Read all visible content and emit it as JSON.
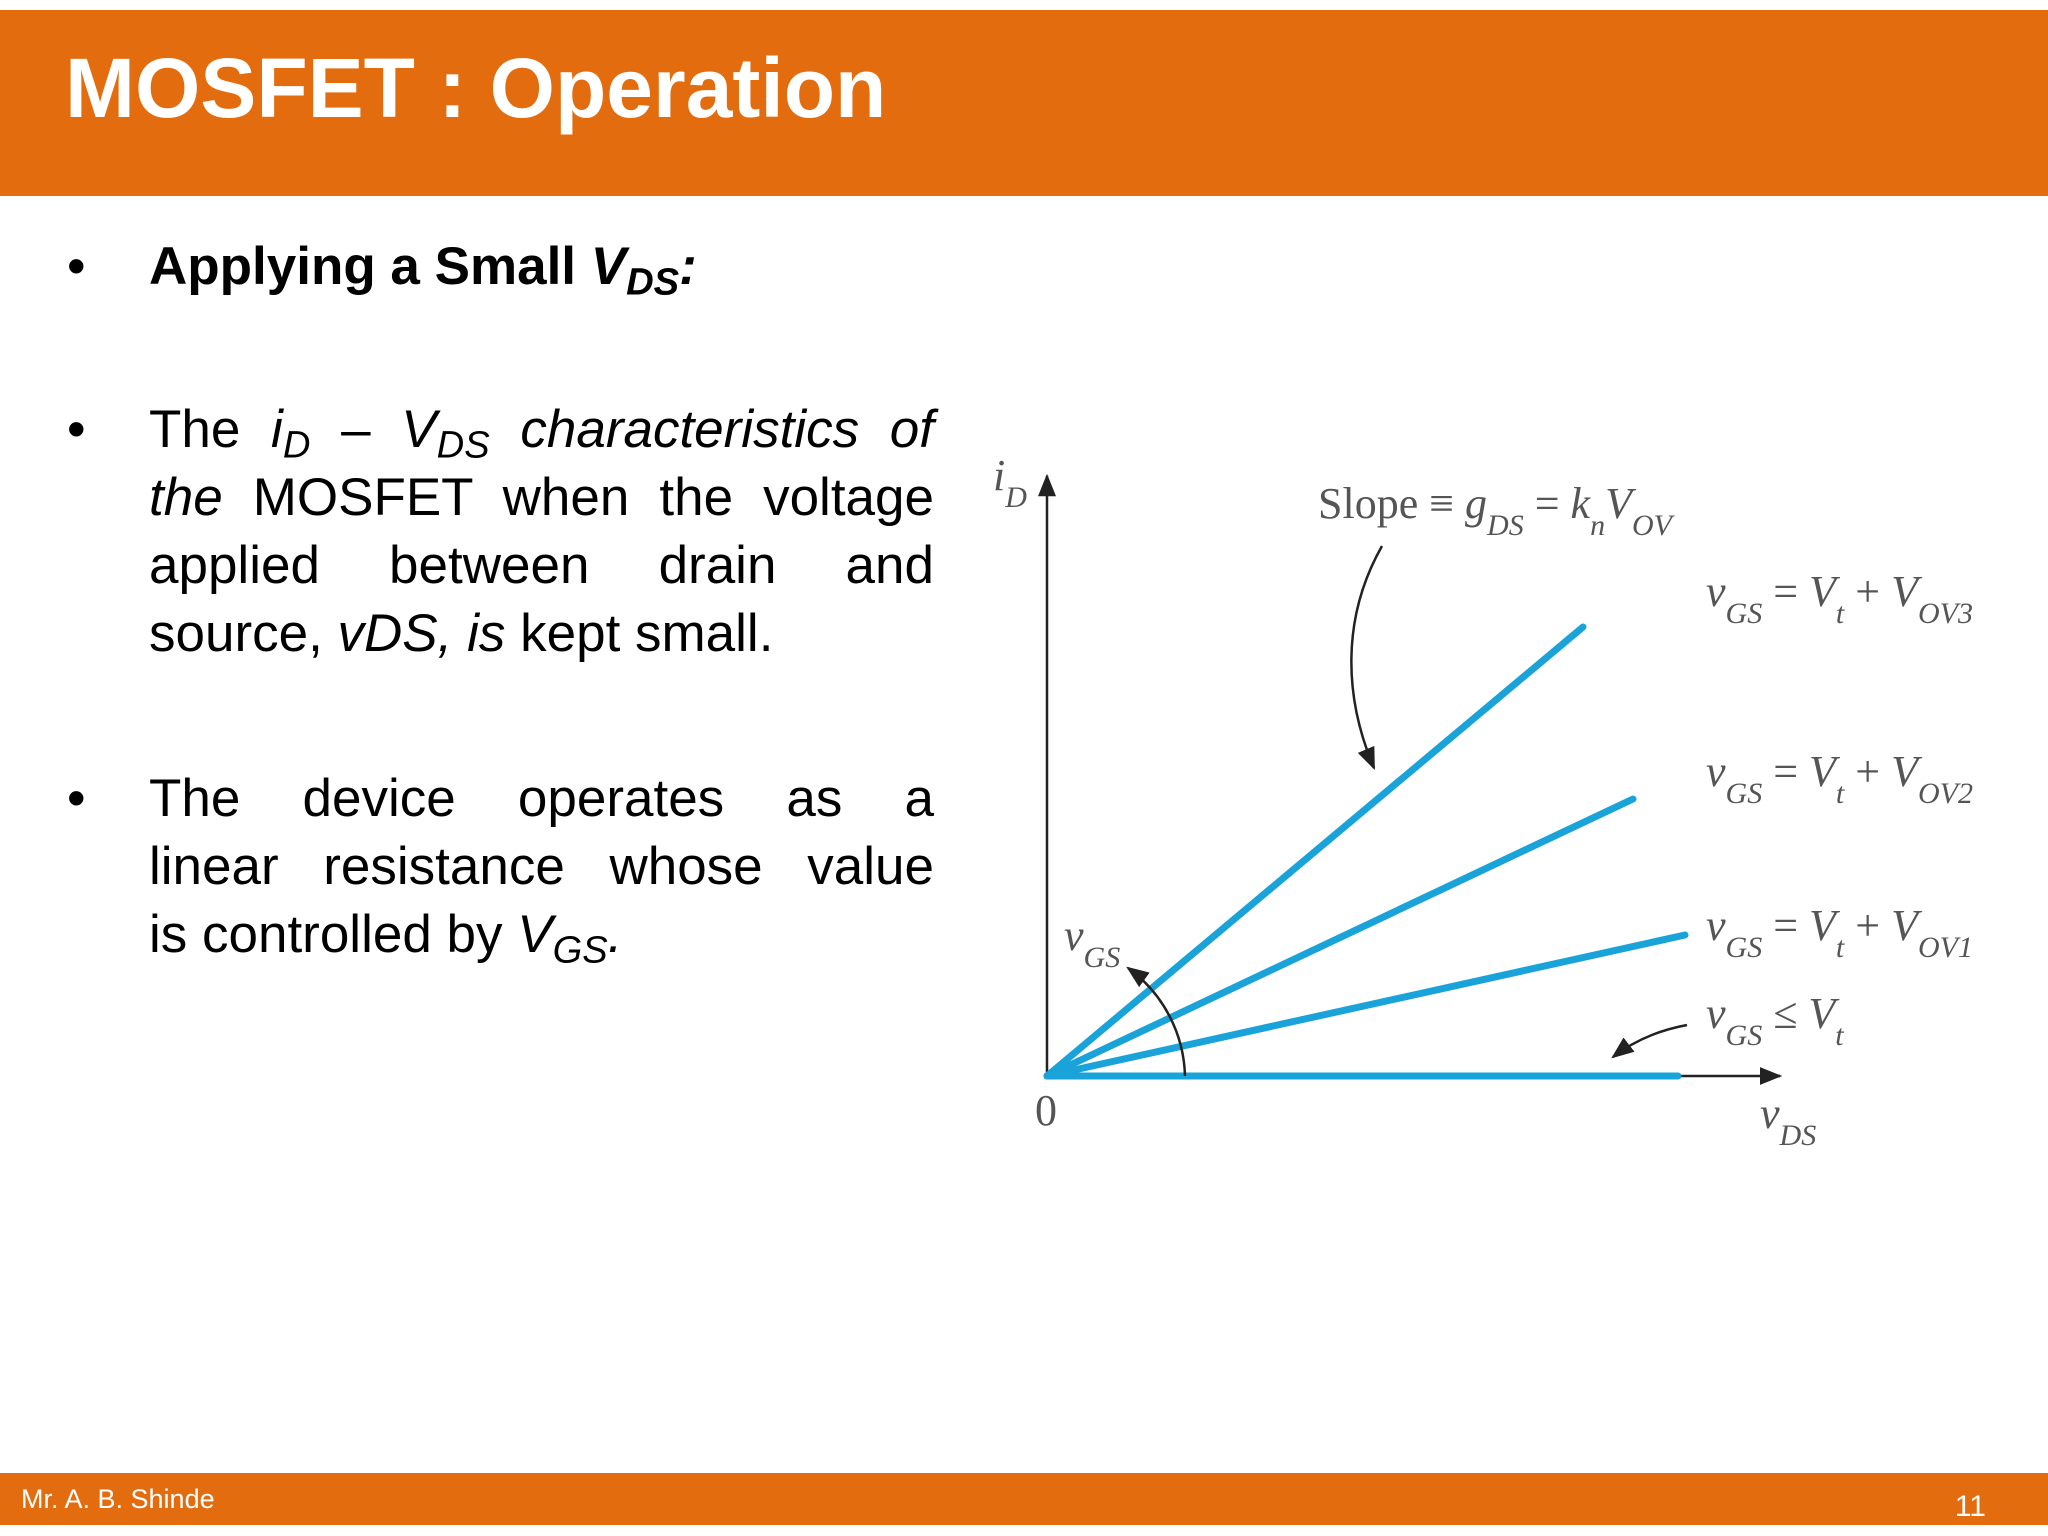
{
  "header": {
    "title": "MOSFET : Operation"
  },
  "bullet": "•",
  "bullets": [
    {
      "lines": [
        [
          "Applying a Small ",
          "V",
          "DS",
          ":"
        ]
      ]
    },
    {
      "lines": [
        [
          "The ",
          "i",
          "D",
          " – ",
          "V",
          "DS",
          " characteristics of"
        ],
        [
          "the",
          " MOSFET when the voltage"
        ],
        [
          "applied between drain and"
        ],
        [
          "source, ",
          "vDS, is",
          " kept small."
        ]
      ]
    },
    {
      "lines": [
        [
          "The device operates as a"
        ],
        [
          "linear resistance whose value"
        ],
        [
          "is controlled by ",
          "V",
          "GS",
          "."
        ]
      ]
    }
  ],
  "diagram": {
    "y_axis": [
      "i",
      "D"
    ],
    "x_axis": [
      "v",
      "DS"
    ],
    "origin": "0",
    "slope": [
      "Slope ≡ ",
      "g",
      "DS",
      " = ",
      "k",
      "n",
      "V",
      "OV"
    ],
    "angle": [
      "v",
      "GS"
    ],
    "curves": [
      [
        "v",
        "GS",
        " = ",
        "V",
        "t",
        " + ",
        "V",
        "OV3"
      ],
      [
        "v",
        "GS",
        " = ",
        "V",
        "t",
        " + ",
        "V",
        "OV2"
      ],
      [
        "v",
        "GS",
        " = ",
        "V",
        "t",
        " + ",
        "V",
        "OV1"
      ],
      [
        "v",
        "GS",
        " ≤ ",
        "V",
        "t"
      ]
    ]
  },
  "footer": {
    "author": "Mr. A. B. Shinde",
    "page": "11"
  }
}
